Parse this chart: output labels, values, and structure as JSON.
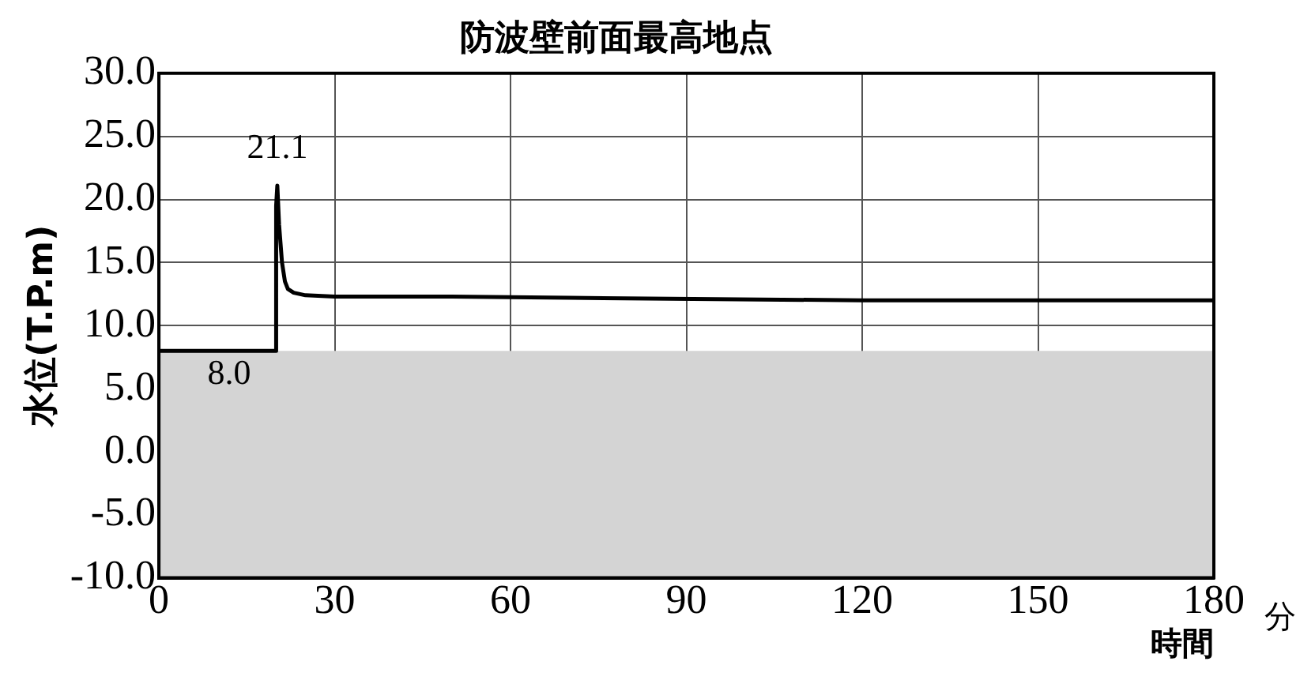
{
  "chart_data": {
    "type": "line",
    "title": "防波壁前面最高地点",
    "xlabel": "時間",
    "ylabel": "水位(T.P.m)",
    "x": [
      0,
      19.9,
      20.0,
      20.2,
      20.5,
      21,
      21.5,
      22,
      23,
      25,
      30,
      50,
      70,
      95,
      120,
      180
    ],
    "series": [
      {
        "color": "#000000",
        "values": [
          8.0,
          8.0,
          19.5,
          21.1,
          18,
          15,
          13.5,
          12.9,
          12.6,
          12.4,
          12.3,
          12.3,
          12.2,
          12.1,
          12.0,
          12.0
        ]
      }
    ],
    "xlim": [
      0,
      180
    ],
    "xticks": [
      0,
      30,
      60,
      90,
      120,
      150,
      180
    ],
    "ylim": [
      -10,
      30
    ],
    "yticks": [
      {
        "value": -10,
        "label": "-10.0"
      },
      {
        "value": -5,
        "label": "-5.0"
      },
      {
        "value": 0,
        "label": "0.0"
      },
      {
        "value": 5,
        "label": "5.0"
      },
      {
        "value": 10,
        "label": "10.0"
      },
      {
        "value": 15,
        "label": "15.0"
      },
      {
        "value": 20,
        "label": "20.0"
      },
      {
        "value": 25,
        "label": "25.0"
      },
      {
        "value": 30,
        "label": "30.0"
      }
    ],
    "bands": [
      {
        "axis": "y",
        "from": -10,
        "to": 8,
        "color": "#d4d4d4"
      }
    ],
    "annotations": [
      {
        "text": "21.1",
        "x": 20.2,
        "y": 21.1
      },
      {
        "text": "8.0",
        "x": 12,
        "y": 8.0
      },
      "分"
    ],
    "grid": true,
    "legend": false,
    "marker": "none",
    "line_style": "solid"
  }
}
